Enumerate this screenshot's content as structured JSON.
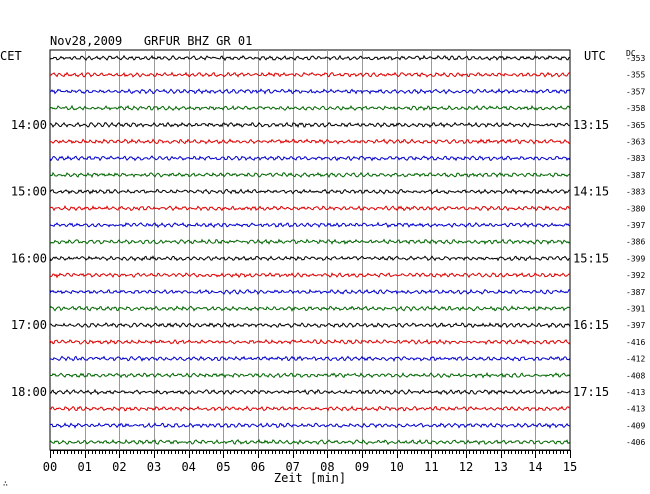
{
  "header": {
    "title": "Nov28,2009   GRFUR BHZ GR 01",
    "left_zone": "CET",
    "right_zone": "UTC",
    "offset_heading": "DC"
  },
  "chart_data": {
    "type": "line",
    "title": "Nov28,2009   GRFUR BHZ GR 01",
    "xlabel": "Zeit [min]",
    "ylabel": "",
    "xlim": [
      0,
      15
    ],
    "x_ticks": [
      "00",
      "01",
      "02",
      "03",
      "04",
      "05",
      "06",
      "07",
      "08",
      "09",
      "10",
      "11",
      "12",
      "13",
      "14",
      "15"
    ],
    "trace_colors": [
      "#000000",
      "#dd0000",
      "#0000cc",
      "#006600"
    ],
    "left_hour_labels": [
      {
        "trace_index": 4,
        "label": "14:00"
      },
      {
        "trace_index": 8,
        "label": "15:00"
      },
      {
        "trace_index": 12,
        "label": "16:00"
      },
      {
        "trace_index": 16,
        "label": "17:00"
      },
      {
        "trace_index": 20,
        "label": "18:00"
      }
    ],
    "right_hour_labels": [
      {
        "trace_index": 4,
        "label": "13:15"
      },
      {
        "trace_index": 8,
        "label": "14:15"
      },
      {
        "trace_index": 12,
        "label": "15:15"
      },
      {
        "trace_index": 16,
        "label": "16:15"
      },
      {
        "trace_index": 20,
        "label": "17:15"
      }
    ],
    "dc_offsets": [
      "-353",
      "-355",
      "-357",
      "-358",
      "-365",
      "-363",
      "-383",
      "-387",
      "-383",
      "-380",
      "-397",
      "-386",
      "-399",
      "-392",
      "-387",
      "-391",
      "-397",
      "-416",
      "-412",
      "-408",
      "-413",
      "-413",
      "-409",
      "-406"
    ]
  },
  "footer": {
    "corner_mark": "∴"
  }
}
